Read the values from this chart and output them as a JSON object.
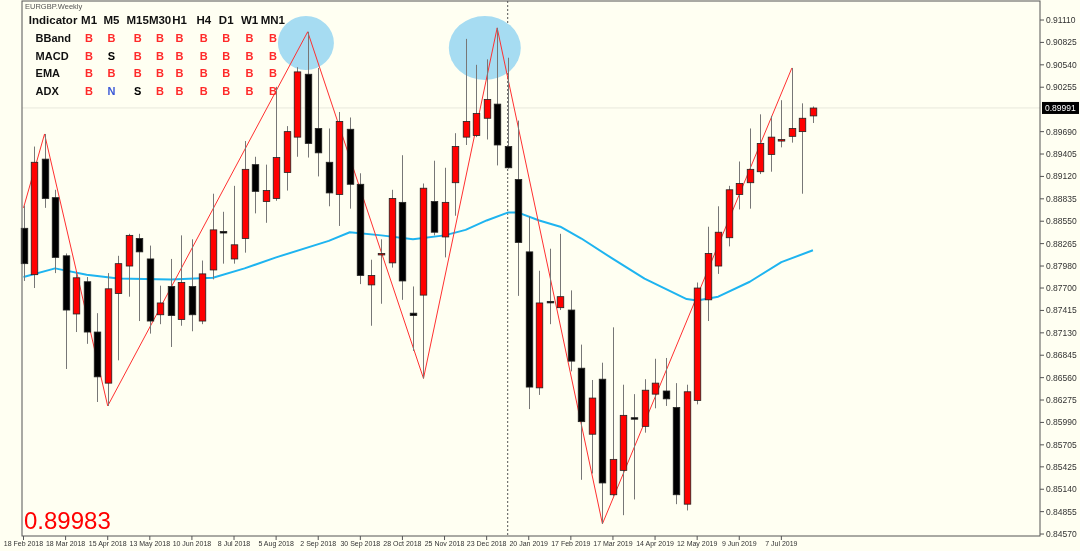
{
  "chart_data": {
    "type": "candlestick",
    "title": "EURGBP.Weekly",
    "x": [
      "2018-02-18",
      "2018-02-25",
      "2018-03-04",
      "2018-03-11",
      "2018-03-18",
      "2018-03-25",
      "2018-04-01",
      "2018-04-08",
      "2018-04-15",
      "2018-04-22",
      "2018-04-29",
      "2018-05-06",
      "2018-05-13",
      "2018-05-20",
      "2018-05-27",
      "2018-06-03",
      "2018-06-10",
      "2018-06-17",
      "2018-06-24",
      "2018-07-01",
      "2018-07-08",
      "2018-07-15",
      "2018-07-22",
      "2018-07-29",
      "2018-08-05",
      "2018-08-12",
      "2018-08-19",
      "2018-08-26",
      "2018-09-02",
      "2018-09-09",
      "2018-09-16",
      "2018-09-23",
      "2018-09-30",
      "2018-10-07",
      "2018-10-14",
      "2018-10-21",
      "2018-10-28",
      "2018-11-04",
      "2018-11-11",
      "2018-11-18",
      "2018-11-25",
      "2018-12-02",
      "2018-12-09",
      "2018-12-16",
      "2018-12-23",
      "2018-12-30",
      "2019-01-06",
      "2019-01-13",
      "2019-01-20",
      "2019-01-27",
      "2019-02-03",
      "2019-02-10",
      "2019-02-17",
      "2019-02-24",
      "2019-03-03",
      "2019-03-10",
      "2019-03-17",
      "2019-03-24",
      "2019-03-31",
      "2019-04-07",
      "2019-04-14",
      "2019-04-21",
      "2019-04-28",
      "2019-05-05",
      "2019-05-12",
      "2019-05-19",
      "2019-05-26",
      "2019-06-02",
      "2019-06-09",
      "2019-06-16",
      "2019-06-23",
      "2019-06-30",
      "2019-07-07",
      "2019-07-14",
      "2019-07-21",
      "2019-07-28"
    ],
    "ohlc": [
      [
        0.8846,
        0.8875,
        0.8779,
        0.8801
      ],
      [
        0.8787,
        0.895,
        0.877,
        0.893
      ],
      [
        0.8934,
        0.8966,
        0.8872,
        0.8884
      ],
      [
        0.8885,
        0.8895,
        0.8789,
        0.8809
      ],
      [
        0.8811,
        0.8814,
        0.8667,
        0.8742
      ],
      [
        0.8737,
        0.8789,
        0.8714,
        0.8783
      ],
      [
        0.8778,
        0.8784,
        0.8699,
        0.8714
      ],
      [
        0.8714,
        0.8738,
        0.8625,
        0.8657
      ],
      [
        0.8649,
        0.8789,
        0.862,
        0.8769
      ],
      [
        0.8763,
        0.8811,
        0.8678,
        0.8801
      ],
      [
        0.8798,
        0.8839,
        0.8759,
        0.8837
      ],
      [
        0.8833,
        0.8839,
        0.8728,
        0.8816
      ],
      [
        0.8807,
        0.8824,
        0.8712,
        0.8728
      ],
      [
        0.8736,
        0.8773,
        0.8724,
        0.8751
      ],
      [
        0.8772,
        0.8807,
        0.8695,
        0.8735
      ],
      [
        0.873,
        0.8837,
        0.8722,
        0.8777
      ],
      [
        0.8772,
        0.8832,
        0.8715,
        0.8736
      ],
      [
        0.8728,
        0.8805,
        0.8724,
        0.8788
      ],
      [
        0.8793,
        0.889,
        0.8781,
        0.8844
      ],
      [
        0.8842,
        0.8867,
        0.8801,
        0.884
      ],
      [
        0.8807,
        0.89,
        0.8801,
        0.8825
      ],
      [
        0.8833,
        0.8957,
        0.8815,
        0.8921
      ],
      [
        0.8927,
        0.8937,
        0.8865,
        0.8893
      ],
      [
        0.888,
        0.8927,
        0.8853,
        0.8894
      ],
      [
        0.8884,
        0.9026,
        0.8881,
        0.8936
      ],
      [
        0.8917,
        0.8976,
        0.8894,
        0.8969
      ],
      [
        0.8962,
        0.9051,
        0.8937,
        0.9045
      ],
      [
        0.9042,
        0.9096,
        0.8936,
        0.8954
      ],
      [
        0.8973,
        0.905,
        0.8912,
        0.8942
      ],
      [
        0.893,
        0.8973,
        0.8874,
        0.8891
      ],
      [
        0.8889,
        0.8994,
        0.8849,
        0.8982
      ],
      [
        0.8972,
        0.8987,
        0.8871,
        0.8902
      ],
      [
        0.8902,
        0.8916,
        0.8775,
        0.8786
      ],
      [
        0.8774,
        0.8806,
        0.8722,
        0.8786
      ],
      [
        0.8813,
        0.8832,
        0.875,
        0.8814
      ],
      [
        0.8802,
        0.8895,
        0.8796,
        0.8884
      ],
      [
        0.8879,
        0.8939,
        0.8755,
        0.8779
      ],
      [
        0.8738,
        0.8772,
        0.869,
        0.8735
      ],
      [
        0.8761,
        0.8903,
        0.8655,
        0.8897
      ],
      [
        0.888,
        0.8932,
        0.8837,
        0.8841
      ],
      [
        0.8835,
        0.8923,
        0.8809,
        0.8879
      ],
      [
        0.8904,
        0.8967,
        0.8862,
        0.895
      ],
      [
        0.8962,
        0.9087,
        0.8952,
        0.8982
      ],
      [
        0.8964,
        0.9054,
        0.8962,
        0.8992
      ],
      [
        0.8986,
        0.9061,
        0.8959,
        0.901
      ],
      [
        0.9004,
        0.9101,
        0.8926,
        0.8952
      ],
      [
        0.895,
        0.9063,
        0.8922,
        0.8923
      ],
      [
        0.8908,
        0.8983,
        0.876,
        0.8828
      ],
      [
        0.8816,
        0.8861,
        0.8616,
        0.8644
      ],
      [
        0.8643,
        0.8792,
        0.8634,
        0.8751
      ],
      [
        0.8753,
        0.882,
        0.8724,
        0.8752
      ],
      [
        0.8745,
        0.8839,
        0.8742,
        0.8759
      ],
      [
        0.8742,
        0.8767,
        0.8664,
        0.8677
      ],
      [
        0.8668,
        0.8698,
        0.8526,
        0.86
      ],
      [
        0.8584,
        0.8653,
        0.8534,
        0.863
      ],
      [
        0.8654,
        0.8675,
        0.847,
        0.8522
      ],
      [
        0.8507,
        0.872,
        0.8505,
        0.8552
      ],
      [
        0.8538,
        0.8647,
        0.8481,
        0.8608
      ],
      [
        0.8605,
        0.8635,
        0.8501,
        0.8604
      ],
      [
        0.8594,
        0.8654,
        0.8586,
        0.864
      ],
      [
        0.8635,
        0.868,
        0.8617,
        0.8649
      ],
      [
        0.8639,
        0.8681,
        0.862,
        0.8629
      ],
      [
        0.8618,
        0.8649,
        0.8495,
        0.8507
      ],
      [
        0.8495,
        0.8647,
        0.8487,
        0.8638
      ],
      [
        0.8627,
        0.8777,
        0.8622,
        0.877
      ],
      [
        0.8755,
        0.8848,
        0.8728,
        0.8814
      ],
      [
        0.8798,
        0.8874,
        0.8788,
        0.8841
      ],
      [
        0.8834,
        0.89,
        0.8823,
        0.8895
      ],
      [
        0.8889,
        0.8931,
        0.887,
        0.8903
      ],
      [
        0.8904,
        0.8973,
        0.8871,
        0.8921
      ],
      [
        0.8918,
        0.8991,
        0.8915,
        0.8954
      ],
      [
        0.894,
        0.8989,
        0.8918,
        0.8962
      ],
      [
        0.8957,
        0.9009,
        0.8949,
        0.8959
      ],
      [
        0.8963,
        0.905,
        0.8955,
        0.8973
      ],
      [
        0.8969,
        0.9005,
        0.889,
        0.8986
      ],
      [
        0.8989,
        0.9001,
        0.898,
        0.8999
      ]
    ],
    "colors": [
      "#000000",
      "#ff0000",
      "#000000",
      "#000000",
      "#000000",
      "#ff0000",
      "#000000",
      "#000000",
      "#ff0000",
      "#ff0000",
      "#ff0000",
      "#000000",
      "#000000",
      "#ff0000",
      "#000000",
      "#ff0000",
      "#000000",
      "#ff0000",
      "#ff0000",
      "#000000",
      "#ff0000",
      "#ff0000",
      "#000000",
      "#ff0000",
      "#ff0000",
      "#ff0000",
      "#ff0000",
      "#000000",
      "#000000",
      "#000000",
      "#ff0000",
      "#000000",
      "#000000",
      "#ff0000",
      "#ff0000",
      "#ff0000",
      "#000000",
      "#000000",
      "#ff0000",
      "#000000",
      "#ff0000",
      "#ff0000",
      "#ff0000",
      "#ff0000",
      "#ff0000",
      "#000000",
      "#000000",
      "#000000",
      "#000000",
      "#ff0000",
      "#000000",
      "#ff0000",
      "#000000",
      "#000000",
      "#ff0000",
      "#000000",
      "#ff0000",
      "#ff0000",
      "#000000",
      "#ff0000",
      "#ff0000",
      "#000000",
      "#000000",
      "#ff0000",
      "#ff0000",
      "#ff0000",
      "#ff0000",
      "#ff0000",
      "#ff0000",
      "#ff0000",
      "#ff0000",
      "#ff0000",
      "#ff0000",
      "#ff0000",
      "#ff0000",
      "#ff0000"
    ],
    "series": [
      {
        "type": "line",
        "color": "#1eb4f0",
        "x": [
          "2018-02-18",
          "2018-03-11",
          "2018-04-01",
          "2018-04-22",
          "2018-05-27",
          "2018-06-24",
          "2018-07-15",
          "2018-08-05",
          "2018-09-09",
          "2018-09-23",
          "2018-10-14",
          "2018-11-04",
          "2018-11-25",
          "2018-12-09",
          "2018-12-23",
          "2019-01-06",
          "2019-01-13",
          "2019-01-27",
          "2019-02-10",
          "2019-02-24",
          "2019-03-17",
          "2019-04-07",
          "2019-04-21",
          "2019-05-05",
          "2019-05-12",
          "2019-05-26",
          "2019-06-16",
          "2019-07-07",
          "2019-07-28"
        ],
        "values": [
          0.8784,
          0.8795,
          0.8787,
          0.8782,
          0.8781,
          0.8783,
          0.8795,
          0.8809,
          0.883,
          0.8841,
          0.8837,
          0.8832,
          0.8837,
          0.8844,
          0.8856,
          0.8866,
          0.8866,
          0.8856,
          0.8848,
          0.8833,
          0.8807,
          0.8782,
          0.8769,
          0.8756,
          0.8754,
          0.8759,
          0.8778,
          0.8803,
          0.8818
        ]
      },
      {
        "type": "line",
        "color": "#ff3030",
        "x": [
          "2018-02-18",
          "2018-03-04",
          "2018-04-15",
          "2018-08-26",
          "2018-11-11",
          "2018-12-30",
          "2019-03-10",
          "2019-07-14"
        ],
        "values": [
          0.8872,
          0.8966,
          0.862,
          0.9096,
          0.8655,
          0.9101,
          0.847,
          0.905
        ]
      }
    ],
    "xlim": [
      "2018-02-17",
      "2019-12-26"
    ],
    "xticks": [
      {
        "value": "2018-02-18",
        "label": "18 Feb 2018"
      },
      {
        "value": "2018-03-18",
        "label": "18 Mar 2018"
      },
      {
        "value": "2018-04-15",
        "label": "15 Apr 2018"
      },
      {
        "value": "2018-05-13",
        "label": "13 May 2018"
      },
      {
        "value": "2018-06-10",
        "label": "10 Jun 2018"
      },
      {
        "value": "2018-07-08",
        "label": "8 Jul 2018"
      },
      {
        "value": "2018-08-05",
        "label": "5 Aug 2018"
      },
      {
        "value": "2018-09-02",
        "label": "2 Sep 2018"
      },
      {
        "value": "2018-09-30",
        "label": "30 Sep 2018"
      },
      {
        "value": "2018-10-28",
        "label": "28 Oct 2018"
      },
      {
        "value": "2018-11-25",
        "label": "25 Nov 2018"
      },
      {
        "value": "2018-12-23",
        "label": "23 Dec 2018"
      },
      {
        "value": "2019-01-20",
        "label": "20 Jan 2019"
      },
      {
        "value": "2019-02-17",
        "label": "17 Feb 2019"
      },
      {
        "value": "2019-03-17",
        "label": "17 Mar 2019"
      },
      {
        "value": "2019-04-14",
        "label": "14 Apr 2019"
      },
      {
        "value": "2019-05-12",
        "label": "12 May 2019"
      },
      {
        "value": "2019-06-09",
        "label": "9 Jun 2019"
      },
      {
        "value": "2019-07-07",
        "label": "7 Jul 2019"
      }
    ],
    "ylim": [
      0.84545,
      0.91352
    ],
    "yticks": [
      {
        "value": 0.9111,
        "label": "0.91110"
      },
      0.90825,
      {
        "value": 0.9054,
        "label": "0.90540"
      },
      0.90255,
      {
        "value": 0.8969,
        "label": "0.89690"
      },
      0.89405,
      {
        "value": 0.8912,
        "label": "0.89120"
      },
      0.88835,
      {
        "value": 0.8855,
        "label": "0.88550"
      },
      0.88265,
      {
        "value": 0.8798,
        "label": "0.87980"
      },
      {
        "value": 0.877,
        "label": "0.87700"
      },
      0.87415,
      {
        "value": 0.8713,
        "label": "0.87130"
      },
      0.86845,
      {
        "value": 0.8656,
        "label": "0.86560"
      },
      0.86275,
      {
        "value": 0.8599,
        "label": "0.85990"
      },
      0.85705,
      0.85425,
      {
        "value": 0.8514,
        "label": "0.85140"
      },
      0.84855,
      {
        "value": 0.8457,
        "label": "0.84570"
      }
    ],
    "ref_lines": [
      {
        "axis": "x",
        "value": "2019-01-06",
        "color": "#555555",
        "line_style": "dotted"
      },
      {
        "axis": "y",
        "value": 0.89991,
        "label": "0.89991",
        "color": "#e8e8dc",
        "line_style": "solid"
      }
    ],
    "annotations": [
      "Indicator",
      "M1",
      "M5",
      "M15",
      "M30",
      "H1",
      "H4",
      "D1",
      "W1",
      "MN1",
      "BBand",
      "B",
      "B",
      "B",
      "B",
      "B",
      "B",
      "B",
      "B",
      "B",
      "MACD",
      "B",
      "S",
      "B",
      "B",
      "B",
      "B",
      "B",
      "B",
      "B",
      "EMA",
      "B",
      "B",
      "B",
      "B",
      "B",
      "B",
      "B",
      "B",
      "B",
      "ADX",
      "B",
      "N",
      "S",
      "B",
      "B",
      "B",
      "B",
      "B",
      "B",
      "0.89983"
    ],
    "grid": false
  }
}
